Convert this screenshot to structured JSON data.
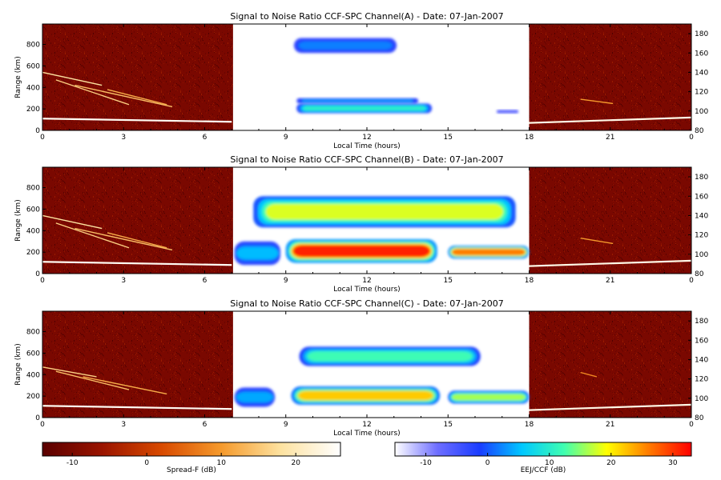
{
  "chart_data": [
    {
      "type": "heatmap",
      "title": "Signal to Noise Ratio CCF-SPC Channel(A) - Date: 07-Jan-2007",
      "xlabel": "Local Time (hours)",
      "ylabel": "Range (km)",
      "xlim": [
        0,
        24
      ],
      "ylim": [
        0,
        990
      ],
      "y2lim": [
        80,
        190
      ],
      "x_ticks": [
        "0",
        "3",
        "6",
        "9",
        "12",
        "15",
        "18",
        "21",
        "0"
      ],
      "y_ticks": [
        "0",
        "200",
        "400",
        "600",
        "800"
      ],
      "y2_ticks": [
        "80",
        "100",
        "120",
        "140",
        "160",
        "180"
      ],
      "night_intervals": [
        [
          0,
          7.05
        ],
        [
          18,
          24
        ]
      ],
      "day_interval": [
        7.05,
        18
      ],
      "spread_f_traces": [
        {
          "x": [
            0,
            7
          ],
          "y": [
            110,
            80
          ],
          "value": 25
        },
        {
          "x": [
            0,
            2.2
          ],
          "y": [
            540,
            420
          ],
          "value": 18
        },
        {
          "x": [
            0.5,
            3.2
          ],
          "y": [
            470,
            240
          ],
          "value": 16
        },
        {
          "x": [
            1.2,
            4.8
          ],
          "y": [
            420,
            220
          ],
          "value": 14
        },
        {
          "x": [
            2.4,
            4.6
          ],
          "y": [
            380,
            240
          ],
          "value": 12
        },
        {
          "x": [
            19.9,
            21.1
          ],
          "y": [
            290,
            250
          ],
          "value": 10
        },
        {
          "x": [
            18,
            24
          ],
          "y": [
            70,
            120
          ],
          "value": 24
        }
      ],
      "eej_regions": [
        {
          "x": [
            9.4,
            14.4
          ],
          "y": [
            160,
            250
          ],
          "peak": 10
        },
        {
          "x": [
            9.4,
            13.9
          ],
          "y": [
            250,
            300
          ],
          "peak": 3
        },
        {
          "x": [
            9.3,
            13.1
          ],
          "y": [
            720,
            860
          ],
          "peak": 2
        },
        {
          "x": [
            16.8,
            17.6
          ],
          "y": [
            160,
            190
          ],
          "peak": -6
        }
      ]
    },
    {
      "type": "heatmap",
      "title": "Signal to Noise Ratio CCF-SPC Channel(B) - Date: 07-Jan-2007",
      "xlabel": "Local Time (hours)",
      "ylabel": "Range (km)",
      "xlim": [
        0,
        24
      ],
      "ylim": [
        0,
        990
      ],
      "y2lim": [
        80,
        190
      ],
      "x_ticks": [
        "0",
        "3",
        "6",
        "9",
        "12",
        "15",
        "18",
        "21",
        "0"
      ],
      "y_ticks": [
        "0",
        "200",
        "400",
        "600",
        "800"
      ],
      "y2_ticks": [
        "80",
        "100",
        "120",
        "140",
        "160",
        "180"
      ],
      "night_intervals": [
        [
          0,
          7.05
        ],
        [
          18,
          24
        ]
      ],
      "day_interval": [
        7.05,
        18
      ],
      "spread_f_traces": [
        {
          "x": [
            0,
            7
          ],
          "y": [
            110,
            80
          ],
          "value": 25
        },
        {
          "x": [
            0,
            2.2
          ],
          "y": [
            540,
            420
          ],
          "value": 18
        },
        {
          "x": [
            0.5,
            3.2
          ],
          "y": [
            470,
            240
          ],
          "value": 16
        },
        {
          "x": [
            1.2,
            4.8
          ],
          "y": [
            420,
            220
          ],
          "value": 14
        },
        {
          "x": [
            2.4,
            4.6
          ],
          "y": [
            380,
            240
          ],
          "value": 12
        },
        {
          "x": [
            19.9,
            21.1
          ],
          "y": [
            330,
            280
          ],
          "value": 10
        },
        {
          "x": [
            18,
            24
          ],
          "y": [
            70,
            120
          ],
          "value": 24
        }
      ],
      "eej_regions": [
        {
          "x": [
            9.0,
            14.6
          ],
          "y": [
            100,
            320
          ],
          "peak": 31
        },
        {
          "x": [
            15.0,
            18.0
          ],
          "y": [
            140,
            260
          ],
          "peak": 26
        },
        {
          "x": [
            7.1,
            8.8
          ],
          "y": [
            80,
            300
          ],
          "peak": 5
        },
        {
          "x": [
            7.8,
            17.5
          ],
          "y": [
            430,
            720
          ],
          "peak": 18
        }
      ]
    },
    {
      "type": "heatmap",
      "title": "Signal to Noise Ratio CCF-SPC Channel(C) - Date: 07-Jan-2007",
      "xlabel": "Local Time (hours)",
      "ylabel": "Range (km)",
      "xlim": [
        0,
        24
      ],
      "ylim": [
        0,
        990
      ],
      "y2lim": [
        80,
        190
      ],
      "x_ticks": [
        "0",
        "3",
        "6",
        "9",
        "12",
        "15",
        "18",
        "21",
        "0"
      ],
      "y_ticks": [
        "0",
        "200",
        "400",
        "600",
        "800"
      ],
      "y2_ticks": [
        "80",
        "100",
        "120",
        "140",
        "160",
        "180"
      ],
      "night_intervals": [
        [
          0,
          7.05
        ],
        [
          18,
          24
        ]
      ],
      "day_interval": [
        7.05,
        18
      ],
      "spread_f_traces": [
        {
          "x": [
            0,
            7
          ],
          "y": [
            110,
            80
          ],
          "value": 25
        },
        {
          "x": [
            0,
            2.0
          ],
          "y": [
            470,
            380
          ],
          "value": 16
        },
        {
          "x": [
            0.5,
            3.2
          ],
          "y": [
            430,
            260
          ],
          "value": 14
        },
        {
          "x": [
            1.5,
            4.6
          ],
          "y": [
            380,
            220
          ],
          "value": 12
        },
        {
          "x": [
            19.9,
            20.5
          ],
          "y": [
            420,
            380
          ],
          "value": 8
        },
        {
          "x": [
            18,
            24
          ],
          "y": [
            70,
            120
          ],
          "value": 24
        }
      ],
      "eej_regions": [
        {
          "x": [
            9.2,
            14.7
          ],
          "y": [
            120,
            290
          ],
          "peak": 22
        },
        {
          "x": [
            15.0,
            18.0
          ],
          "y": [
            130,
            250
          ],
          "peak": 16
        },
        {
          "x": [
            7.1,
            8.6
          ],
          "y": [
            100,
            280
          ],
          "peak": 4
        },
        {
          "x": [
            9.5,
            16.2
          ],
          "y": [
            480,
            660
          ],
          "peak": 12
        }
      ]
    }
  ],
  "colorbars": [
    {
      "label": "Spread-F (dB)",
      "range": [
        -14,
        26
      ],
      "ticks": [
        "-10",
        "0",
        "10",
        "20"
      ],
      "stops": [
        "#5a0000",
        "#9a1400",
        "#d84a00",
        "#f59a2c",
        "#fde2a0",
        "#ffffff"
      ]
    },
    {
      "label": "EEJ/CCF (dB)",
      "range": [
        -15,
        33
      ],
      "ticks": [
        "-10",
        "0",
        "10",
        "20",
        "30"
      ],
      "stops": [
        "#ffffff",
        "#6e6eff",
        "#1a3cff",
        "#00c8ff",
        "#40ffb0",
        "#ffff00",
        "#ff7a00",
        "#ff0000"
      ]
    }
  ]
}
